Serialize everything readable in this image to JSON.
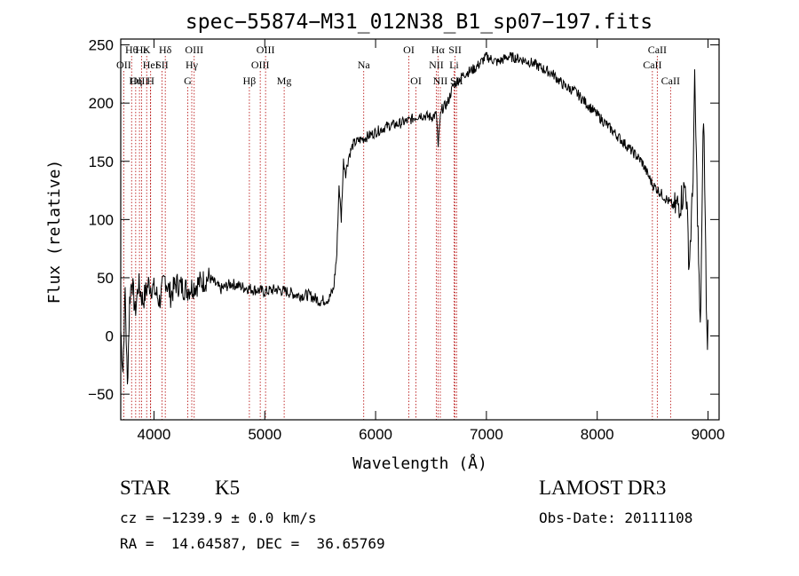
{
  "chart_data": {
    "type": "line",
    "title": "spec−55874−M31_012N38_B1_sp07−197.fits",
    "xlabel": "Wavelength (Å)",
    "ylabel": "Flux (relative)",
    "xlim": [
      3700,
      9100
    ],
    "ylim": [
      -72,
      255
    ],
    "xticks": [
      4000,
      5000,
      6000,
      7000,
      8000,
      9000
    ],
    "yticks": [
      -50,
      0,
      50,
      100,
      150,
      200,
      250
    ],
    "grid": false,
    "series": [
      {
        "x": [
          3700,
          3720,
          3740,
          3760,
          3780,
          3800,
          3830,
          3860,
          3900,
          3950,
          4000,
          4050,
          4100,
          4150,
          4200,
          4300,
          4400,
          4500,
          4600,
          4700,
          4800,
          4900,
          5000,
          5100,
          5200,
          5300,
          5400,
          5500,
          5580,
          5620,
          5650,
          5670,
          5690,
          5710,
          5730,
          5760,
          5800,
          5850,
          5900,
          6000,
          6100,
          6200,
          6300,
          6400,
          6500,
          6550,
          6565,
          6580,
          6600,
          6650,
          6700,
          6800,
          6900,
          7000,
          7100,
          7200,
          7300,
          7400,
          7500,
          7600,
          7700,
          7800,
          7900,
          8000,
          8100,
          8200,
          8300,
          8400,
          8500,
          8600,
          8700,
          8750,
          8800,
          8830,
          8860,
          8880,
          8900,
          8930,
          8960,
          8990,
          9000
        ],
        "y": [
          5,
          -30,
          40,
          -45,
          30,
          50,
          20,
          45,
          30,
          45,
          40,
          30,
          50,
          35,
          45,
          40,
          45,
          50,
          40,
          45,
          42,
          40,
          38,
          40,
          38,
          35,
          35,
          30,
          32,
          40,
          70,
          130,
          100,
          150,
          140,
          155,
          165,
          168,
          170,
          175,
          180,
          182,
          185,
          190,
          188,
          190,
          160,
          185,
          195,
          200,
          215,
          225,
          230,
          240,
          235,
          240,
          238,
          235,
          230,
          225,
          215,
          210,
          200,
          190,
          180,
          170,
          160,
          150,
          130,
          120,
          110,
          115,
          130,
          60,
          120,
          215,
          130,
          0,
          195,
          0,
          5
        ]
      }
    ],
    "lines": [
      {
        "label": "Hθ",
        "x": 3798
      },
      {
        "label": "OII",
        "x": 3727
      },
      {
        "label": "OIII",
        "x": 3869
      },
      {
        "label": "K",
        "x": 3934
      },
      {
        "label": "Hε",
        "x": 3889
      },
      {
        "label": "HeI",
        "x": 3970
      },
      {
        "label": "Hη",
        "x": 3835
      },
      {
        "label": "SII",
        "x": 4072
      },
      {
        "label": "H",
        "x": 3969
      },
      {
        "label": "Hδ",
        "x": 4102
      },
      {
        "label": "OIII",
        "x": 4363
      },
      {
        "label": "Hγ",
        "x": 4341
      },
      {
        "label": "G",
        "x": 4305
      },
      {
        "label": "OIII",
        "x": 5007
      },
      {
        "label": "OIII",
        "x": 4959
      },
      {
        "label": "Hβ",
        "x": 4861
      },
      {
        "label": "Mg",
        "x": 5175
      },
      {
        "label": "Na",
        "x": 5893
      },
      {
        "label": "OI",
        "x": 6300
      },
      {
        "label": "OI",
        "x": 6364
      },
      {
        "label": "Hα",
        "x": 6563
      },
      {
        "label": "SII",
        "x": 6717
      },
      {
        "label": "NII",
        "x": 6548
      },
      {
        "label": "Li",
        "x": 6708
      },
      {
        "label": "NII",
        "x": 6584
      },
      {
        "label": "SII",
        "x": 6731
      },
      {
        "label": "CaII",
        "x": 8542
      },
      {
        "label": "CaII",
        "x": 8498
      },
      {
        "label": "CaII",
        "x": 8662
      }
    ]
  },
  "info": {
    "class": "STAR",
    "subclass": "K5",
    "survey": "LAMOST DR3",
    "cz": "cz = −1239.9 ± 0.0 km/s",
    "obs_date": "Obs-Date: 20111108",
    "radec": "RA =  14.64587, DEC =  36.65769"
  }
}
